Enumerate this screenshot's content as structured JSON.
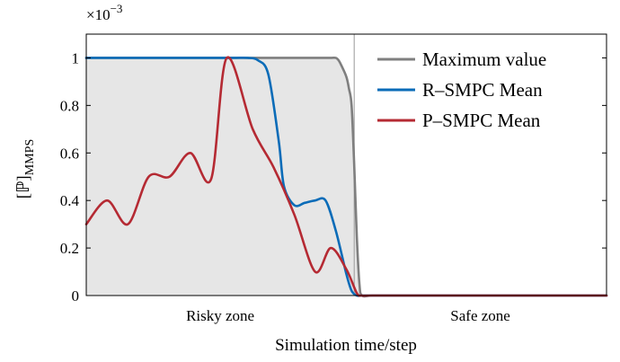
{
  "chart_data": {
    "type": "line",
    "multiplier": {
      "base": "×10",
      "exponent": "−3"
    },
    "ylabel": {
      "main": "[ℙ]",
      "sub": "MMPS"
    },
    "xlabel": "Simulation time/step",
    "zones": [
      {
        "label": "Risky zone",
        "x_range": [
          0,
          0.515
        ]
      },
      {
        "label": "Safe zone",
        "x_range": [
          0.515,
          1.0
        ]
      }
    ],
    "ylim": [
      0,
      1.1
    ],
    "xlim": [
      0,
      1
    ],
    "yticks": [
      {
        "value": 0,
        "label": "0"
      },
      {
        "value": 0.2,
        "label": "0.2"
      },
      {
        "value": 0.4,
        "label": "0.4"
      },
      {
        "value": 0.6,
        "label": "0.6"
      },
      {
        "value": 0.8,
        "label": "0.8"
      },
      {
        "value": 1.0,
        "label": "1"
      }
    ],
    "legend_position": "top-right",
    "series": [
      {
        "name": "Maximum value",
        "color": "#7f7f7f",
        "fill": "#e6e6e6",
        "x": [
          0,
          0.1,
          0.2,
          0.3,
          0.4,
          0.45,
          0.47,
          0.48,
          0.485,
          0.49,
          0.5,
          0.505,
          0.51,
          0.515,
          0.52,
          0.525,
          0.53,
          0.55,
          0.6,
          0.7,
          0.8,
          0.9,
          1.0
        ],
        "y": [
          1.0,
          1.0,
          1.0,
          1.0,
          1.0,
          1.0,
          1.0,
          1.0,
          0.99,
          0.97,
          0.92,
          0.87,
          0.8,
          0.55,
          0.25,
          0.05,
          0.0,
          0.0,
          0.0,
          0.0,
          0.0,
          0.0,
          0.0
        ]
      },
      {
        "name": "R–SMPC Mean",
        "color": "#0b6cb8",
        "x": [
          0,
          0.1,
          0.2,
          0.28,
          0.31,
          0.33,
          0.35,
          0.37,
          0.38,
          0.4,
          0.42,
          0.44,
          0.46,
          0.48,
          0.5,
          0.51,
          0.52,
          0.53,
          0.55,
          0.7,
          0.85,
          1.0
        ],
        "y": [
          1.0,
          1.0,
          1.0,
          1.0,
          1.0,
          0.99,
          0.93,
          0.65,
          0.46,
          0.38,
          0.39,
          0.4,
          0.4,
          0.27,
          0.09,
          0.02,
          0.0,
          0.0,
          0.0,
          0.0,
          0.0,
          0.0
        ]
      },
      {
        "name": "P–SMPC Mean",
        "color": "#b52a33",
        "x": [
          0,
          0.04,
          0.08,
          0.12,
          0.16,
          0.2,
          0.24,
          0.27,
          0.32,
          0.36,
          0.4,
          0.44,
          0.47,
          0.5,
          0.52,
          0.53,
          0.55,
          0.7,
          0.85,
          1.0
        ],
        "y": [
          0.3,
          0.4,
          0.3,
          0.5,
          0.5,
          0.6,
          0.49,
          1.0,
          0.7,
          0.54,
          0.34,
          0.1,
          0.2,
          0.11,
          0.01,
          0.0,
          0.0,
          0.0,
          0.0,
          0.0
        ]
      }
    ]
  }
}
